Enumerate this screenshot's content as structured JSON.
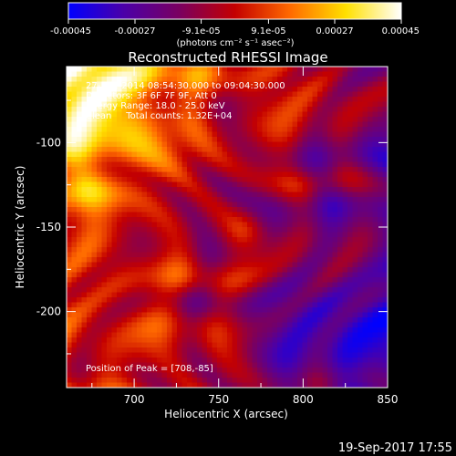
{
  "colorbar": {
    "ticks": [
      "-0.00045",
      "-0.00027",
      "-9.1e-05",
      "9.1e-05",
      "0.00027",
      "0.00045"
    ],
    "tick_values": [
      -0.00045,
      -0.00027,
      -9.1e-05,
      9.1e-05,
      0.00027,
      0.00045
    ],
    "range": [
      -0.00045,
      0.00045
    ],
    "unit_label": "(photons cm⁻² s⁻¹ asec⁻²)",
    "colors": [
      "#0000ff",
      "#4b00a8",
      "#7a0060",
      "#c40000",
      "#ff6a00",
      "#ffe000",
      "#ffffff"
    ]
  },
  "chart_data": {
    "type": "heatmap",
    "title": "Reconstructed RHESSI Image",
    "xlabel": "Heliocentric X (arcsec)",
    "ylabel": "Heliocentric Y (arcsec)",
    "xlim": [
      660,
      850
    ],
    "ylim": [
      -245,
      -55
    ],
    "xticks": [
      700,
      750,
      800,
      850
    ],
    "yticks": [
      -100,
      -150,
      -200
    ],
    "annotations": [
      "27-Dec-2014 08:54:30.000 to 09:04:30.000",
      "Detectors: 3F 6F 7F 9F, Att 0",
      "Energy Range: 18.0 - 25.0 keV",
      "Clean     Total counts: 1.32E+04"
    ],
    "peak_label": "Position of Peak = [708,-85]",
    "peak": [
      708,
      -85
    ]
  },
  "timestamp": "19-Sep-2017 17:55"
}
